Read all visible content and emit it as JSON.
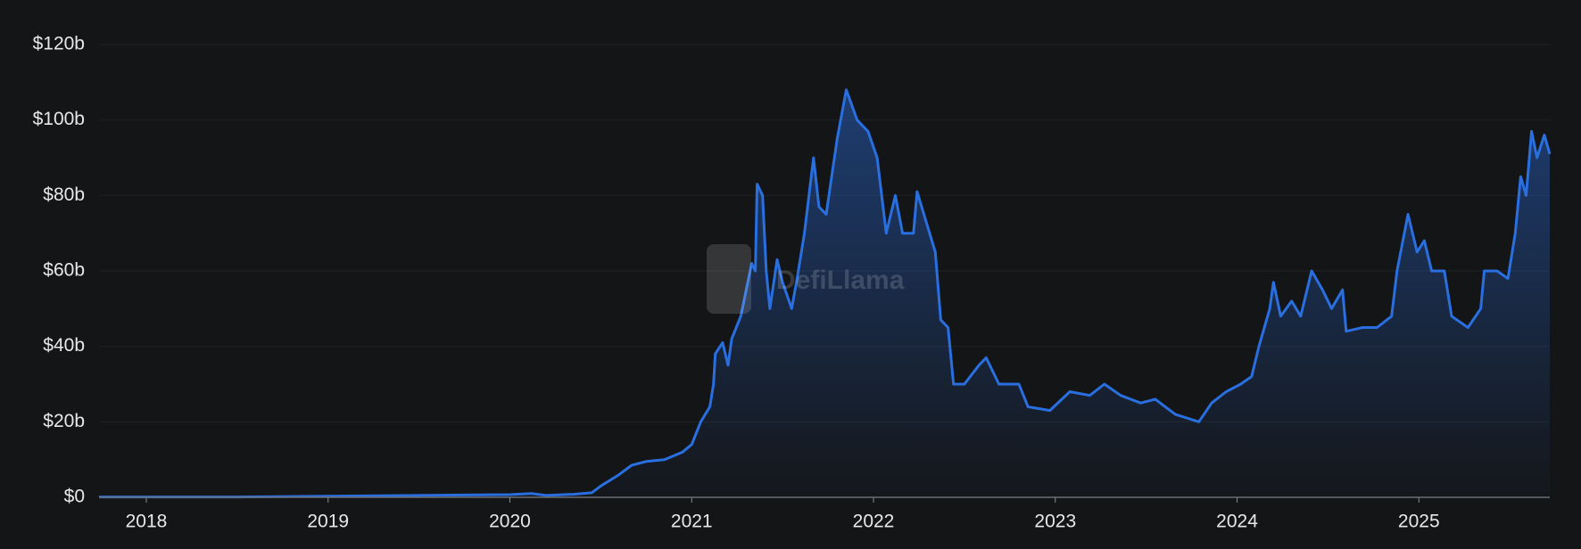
{
  "chart_data": {
    "type": "area",
    "watermark": "DefiLlama",
    "color": "#2a6fe0",
    "grid": true,
    "xlim": [
      2017.74,
      2025.72
    ],
    "xticks": [
      2018,
      2019,
      2020,
      2021,
      2022,
      2023,
      2024,
      2025
    ],
    "ylim": [
      0,
      120
    ],
    "yticks": [
      {
        "value": 0,
        "label": "$0"
      },
      {
        "value": 20,
        "label": "$20b"
      },
      {
        "value": 40,
        "label": "$40b"
      },
      {
        "value": 60,
        "label": "$60b"
      },
      {
        "value": 80,
        "label": "$80b"
      },
      {
        "value": 100,
        "label": "$100b"
      },
      {
        "value": 120,
        "label": "$120b"
      }
    ],
    "x": [
      2017.74,
      2018.5,
      2019.0,
      2019.5,
      2020.0,
      2020.12,
      2020.2,
      2020.35,
      2020.45,
      2020.5,
      2020.6,
      2020.67,
      2020.75,
      2020.85,
      2020.95,
      2021.0,
      2021.05,
      2021.1,
      2021.12,
      2021.13,
      2021.17,
      2021.2,
      2021.22,
      2021.27,
      2021.3,
      2021.33,
      2021.35,
      2021.36,
      2021.39,
      2021.41,
      2021.43,
      2021.47,
      2021.5,
      2021.55,
      2021.58,
      2021.62,
      2021.67,
      2021.7,
      2021.74,
      2021.8,
      2021.85,
      2021.91,
      2021.97,
      2022.02,
      2022.07,
      2022.12,
      2022.16,
      2022.22,
      2022.24,
      2022.29,
      2022.34,
      2022.37,
      2022.41,
      2022.44,
      2022.5,
      2022.58,
      2022.62,
      2022.69,
      2022.8,
      2022.85,
      2022.97,
      2023.08,
      2023.19,
      2023.27,
      2023.36,
      2023.47,
      2023.55,
      2023.66,
      2023.79,
      2023.86,
      2023.94,
      2024.02,
      2024.08,
      2024.12,
      2024.18,
      2024.2,
      2024.24,
      2024.3,
      2024.35,
      2024.41,
      2024.47,
      2024.52,
      2024.58,
      2024.6,
      2024.69,
      2024.77,
      2024.85,
      2024.88,
      2024.94,
      2024.99,
      2025.03,
      2025.07,
      2025.14,
      2025.18,
      2025.27,
      2025.34,
      2025.36,
      2025.43,
      2025.49,
      2025.53,
      2025.56,
      2025.59,
      2025.62,
      2025.65,
      2025.69,
      2025.72
    ],
    "values": [
      0.1,
      0.1,
      0.3,
      0.5,
      0.7,
      1.0,
      0.5,
      0.8,
      1.2,
      3,
      6,
      8.5,
      9.5,
      10,
      12,
      14,
      20,
      24,
      30,
      38,
      41,
      35,
      42,
      48,
      55,
      62,
      60,
      83,
      80,
      60,
      50,
      63,
      57,
      50,
      58,
      70,
      90,
      77,
      75,
      95,
      108,
      100,
      97,
      90,
      70,
      80,
      70,
      70,
      81,
      73,
      65,
      47,
      45,
      30,
      30,
      35,
      37,
      30,
      30,
      24,
      23,
      28,
      27,
      30,
      27,
      25,
      26,
      22,
      20,
      25,
      28,
      30,
      32,
      40,
      50,
      57,
      48,
      52,
      48,
      60,
      55,
      50,
      55,
      44,
      45,
      45,
      48,
      60,
      75,
      65,
      68,
      60,
      60,
      48,
      45,
      50,
      60,
      60,
      58,
      70,
      85,
      80,
      97,
      90,
      96,
      91
    ]
  }
}
